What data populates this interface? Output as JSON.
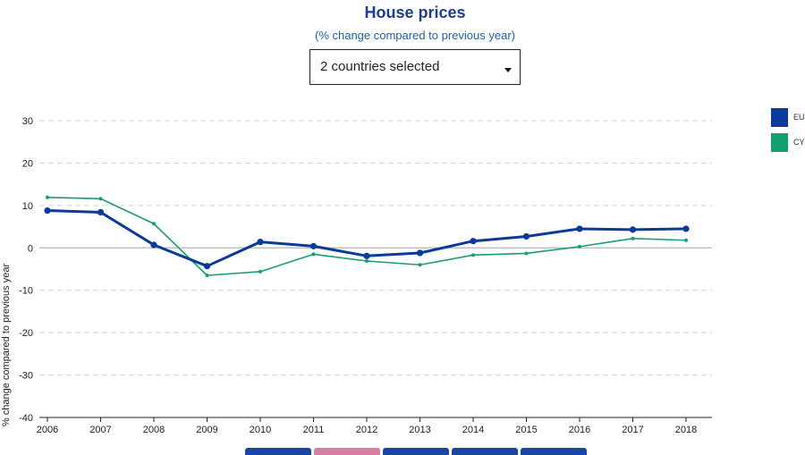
{
  "header": {
    "title": "House prices",
    "subtitle": "(% change compared to previous year)"
  },
  "selector": {
    "value": "2 countries selected",
    "icon": "caret-down-icon"
  },
  "legend": [
    {
      "label": "EU",
      "color": "#0b3b9a"
    },
    {
      "label": "CY",
      "color": "#14a06f"
    }
  ],
  "bottom_tabs": [
    {
      "color": "#1846a3"
    },
    {
      "color": "#d77fa3"
    },
    {
      "color": "#1846a3"
    },
    {
      "color": "#1846a3"
    },
    {
      "color": "#1846a3"
    }
  ],
  "chart_data": {
    "type": "line",
    "title": "House prices",
    "subtitle": "(% change compared to previous year)",
    "xlabel": "",
    "ylabel": "% change compared to previous year",
    "x": [
      "2006",
      "2007",
      "2008",
      "2009",
      "2010",
      "2011",
      "2012",
      "2013",
      "2014",
      "2015",
      "2016",
      "2017",
      "2018"
    ],
    "ylim": [
      -40,
      30
    ],
    "yticks": [
      30,
      20,
      10,
      0,
      -10,
      -20,
      -30,
      -40
    ],
    "grid": true,
    "legend_position": "right",
    "series": [
      {
        "name": "EU",
        "color": "#0b3b9a",
        "values": [
          8.8,
          8.4,
          0.7,
          -4.3,
          1.4,
          0.4,
          -1.9,
          -1.2,
          1.6,
          2.7,
          4.5,
          4.3,
          4.5
        ]
      },
      {
        "name": "CY",
        "color": "#14a06f",
        "values": [
          11.9,
          11.6,
          5.7,
          -6.5,
          -5.6,
          -1.5,
          -3.1,
          -4.0,
          -1.7,
          -1.3,
          0.3,
          2.2,
          1.8
        ]
      }
    ]
  }
}
